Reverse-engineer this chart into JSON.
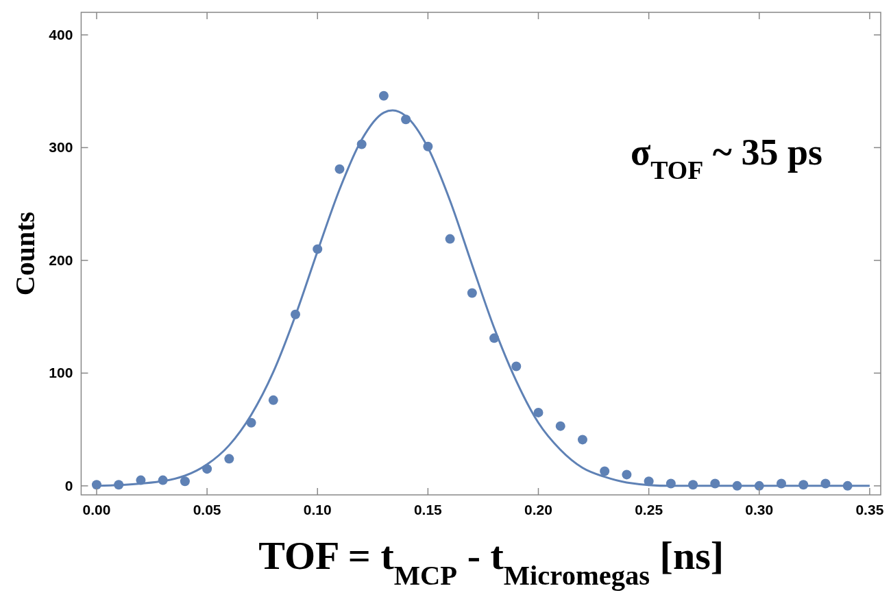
{
  "chart_data": {
    "type": "scatter",
    "xlabel": "TOF = t$_{MCP}$ - t$_{Micromegas}$ [ns]",
    "ylabel": "Counts",
    "xlim": [
      -0.007,
      0.355
    ],
    "ylim": [
      -8,
      420
    ],
    "xticks": [
      {
        "value": 0,
        "label": "0.00"
      },
      {
        "value": 0.05,
        "label": "0.05"
      },
      {
        "value": 0.1,
        "label": "0.10"
      },
      {
        "value": 0.15,
        "label": "0.15"
      },
      {
        "value": 0.2,
        "label": "0.20"
      },
      {
        "value": 0.25,
        "label": "0.25"
      },
      {
        "value": 0.3,
        "label": "0.30"
      },
      {
        "value": 0.35,
        "label": "0.35"
      }
    ],
    "yticks": [
      0,
      100,
      200,
      300,
      400
    ],
    "grid": false,
    "marker": "circle",
    "annotations": [
      "σ$_{TOF}$ ~ 35 ps"
    ],
    "series": [
      {
        "color": "#5e81b5",
        "x": [
          0,
          0.01,
          0.02,
          0.03,
          0.04,
          0.05,
          0.06,
          0.07,
          0.08,
          0.09,
          0.1,
          0.11,
          0.12,
          0.13,
          0.14,
          0.15,
          0.16,
          0.17,
          0.18,
          0.19,
          0.2,
          0.21,
          0.22,
          0.23,
          0.24,
          0.25,
          0.26,
          0.27,
          0.28,
          0.29,
          0.3,
          0.31,
          0.32,
          0.33,
          0.34
        ],
        "values": [
          1,
          1,
          5,
          5,
          4,
          15,
          24,
          56,
          76,
          152,
          210,
          281,
          303,
          346,
          325,
          301,
          219,
          171,
          131,
          106,
          65,
          53,
          41,
          13,
          10,
          4,
          2,
          1,
          2,
          0,
          0,
          2,
          1,
          2,
          0
        ]
      },
      {
        "type": "line",
        "marker": "none",
        "color": "#5e81b5",
        "line_style": "solid",
        "x": [
          0,
          0.02,
          0.04,
          0.05,
          0.06,
          0.07,
          0.08,
          0.09,
          0.1,
          0.11,
          0.12,
          0.13,
          0.134,
          0.14,
          0.15,
          0.16,
          0.17,
          0.18,
          0.19,
          0.2,
          0.21,
          0.22,
          0.23,
          0.24,
          0.26,
          0.3,
          0.35
        ],
        "values": [
          0,
          2,
          9,
          19,
          36,
          63,
          101,
          151,
          208,
          263,
          307,
          331,
          333,
          328,
          300,
          253,
          196,
          140,
          93,
          56,
          32,
          16,
          8,
          3,
          0,
          0,
          0
        ]
      }
    ]
  }
}
